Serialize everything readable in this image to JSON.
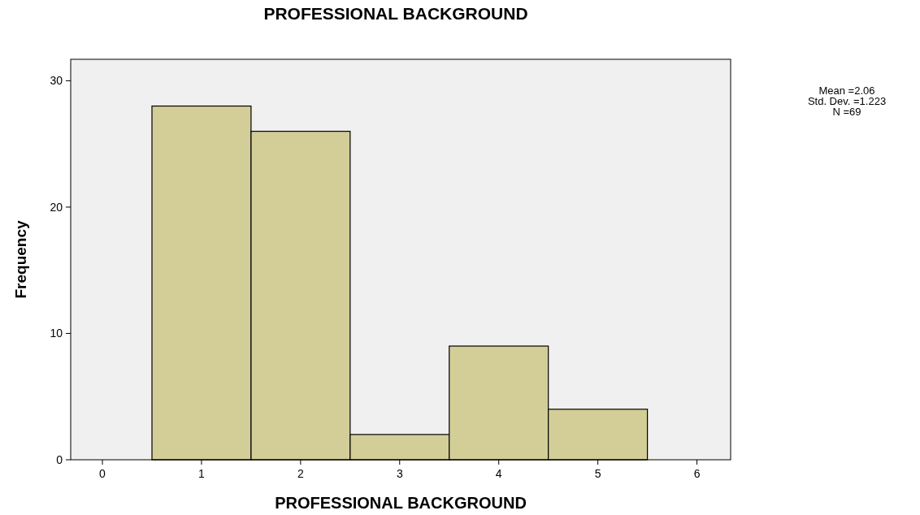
{
  "chart_data": {
    "type": "histogram",
    "title": "PROFESSIONAL BACKGROUND",
    "xlabel": "PROFESSIONAL BACKGROUND",
    "ylabel": "Frequency",
    "bins": [
      0.5,
      1.5,
      2.5,
      3.5,
      4.5,
      5.5
    ],
    "values": [
      28,
      26,
      2,
      9,
      4
    ],
    "color": "#d3cd98",
    "xlim": [
      -0.32,
      6.34
    ],
    "xticks": [
      0,
      1,
      2,
      3,
      4,
      5,
      6
    ],
    "ylim": [
      0,
      31.7
    ],
    "yticks": [
      0,
      10,
      20,
      30
    ],
    "grid": false,
    "annotations": [
      "Mean =2.06",
      "Std. Dev. =1.223",
      "N =69"
    ]
  }
}
